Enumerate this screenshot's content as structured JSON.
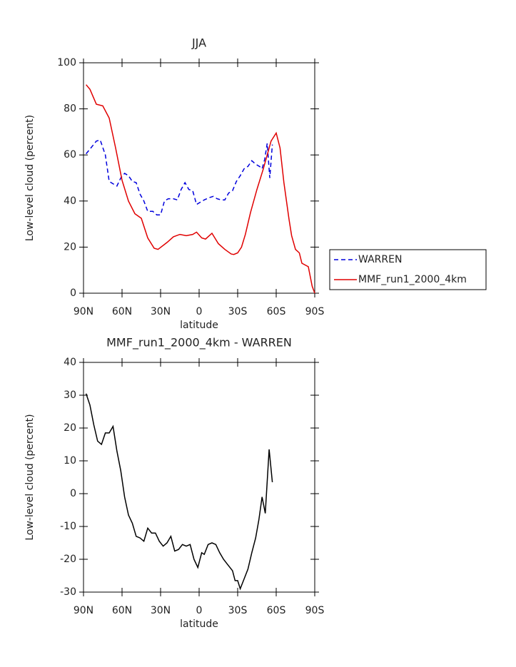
{
  "chart_data": [
    {
      "type": "line",
      "title": "JJA",
      "xlabel": "latitude",
      "ylabel": "Low-level cloud (percent)",
      "xlim": [
        90,
        -90
      ],
      "xticks": [
        {
          "value": 90,
          "label": "90N"
        },
        {
          "value": 60,
          "label": "60N"
        },
        {
          "value": 30,
          "label": "30N"
        },
        0,
        {
          "value": -30,
          "label": "30S"
        },
        {
          "value": -60,
          "label": "60S"
        },
        {
          "value": -90,
          "label": "90S"
        }
      ],
      "ylim": [
        0,
        100
      ],
      "yticks": [
        0,
        20,
        40,
        60,
        80,
        100
      ],
      "legend": "right",
      "series": [
        {
          "name": "WARREN",
          "color": "#0000dd",
          "dashed": true,
          "x": [
            88,
            85,
            80,
            77,
            73,
            70,
            67,
            64,
            61,
            58,
            55,
            52,
            49,
            46,
            43,
            40,
            36,
            33,
            30,
            27,
            24,
            20,
            17,
            14,
            11,
            8,
            5,
            2,
            -1,
            -4,
            -8,
            -11,
            -14,
            -17,
            -20,
            -23,
            -26,
            -29,
            -32,
            -35,
            -38,
            -41,
            -44,
            -47,
            -49,
            -51,
            -53,
            -55,
            -57
          ],
          "values": [
            60.5,
            62.5,
            66,
            66.5,
            60,
            48.5,
            47.5,
            46.5,
            50,
            52,
            51,
            48.5,
            48,
            43,
            40,
            35.5,
            35.5,
            34,
            34,
            40,
            41,
            41,
            40.5,
            45,
            48,
            45,
            44.5,
            38.5,
            39.5,
            40.5,
            41.5,
            42,
            41,
            40.5,
            40.5,
            43.5,
            44.5,
            48.5,
            51,
            54,
            55,
            57.5,
            56,
            55,
            54,
            58,
            65,
            50,
            64.5
          ]
        },
        {
          "name": "MMF_run1_2000_4km",
          "color": "#e00000",
          "dashed": false,
          "x": [
            88,
            85,
            80,
            75,
            70,
            65,
            60,
            55,
            50,
            45,
            40,
            35,
            32,
            25,
            20,
            15,
            10,
            5,
            2,
            -2,
            -5,
            -10,
            -15,
            -20,
            -25,
            -27,
            -30,
            -33,
            -36,
            -40,
            -45,
            -50,
            -53,
            -56,
            -60,
            -63,
            -66,
            -70,
            -72,
            -75,
            -78,
            -80,
            -85,
            -88,
            -90
          ],
          "values": [
            90.5,
            88.5,
            82,
            81.3,
            76,
            63,
            49,
            40,
            34.5,
            32.5,
            24,
            19.5,
            19,
            22,
            24.5,
            25.5,
            25,
            25.5,
            26.5,
            24,
            23.5,
            26,
            21.5,
            19,
            17,
            16.8,
            17.5,
            20,
            25.5,
            35,
            45,
            54,
            60,
            66,
            69.5,
            63,
            48,
            32,
            25,
            19,
            17.5,
            13,
            11.5,
            3,
            0
          ]
        }
      ]
    },
    {
      "type": "line",
      "title": "MMF_run1_2000_4km - WARREN",
      "xlabel": "latitude",
      "ylabel": "Low-level cloud (percent)",
      "xlim": [
        90,
        -90
      ],
      "xticks": [
        {
          "value": 90,
          "label": "90N"
        },
        {
          "value": 60,
          "label": "60N"
        },
        {
          "value": 30,
          "label": "30N"
        },
        0,
        {
          "value": -30,
          "label": "30S"
        },
        {
          "value": -60,
          "label": "60S"
        },
        {
          "value": -90,
          "label": "90S"
        }
      ],
      "ylim": [
        -30,
        40
      ],
      "yticks": [
        -30,
        -20,
        -10,
        0,
        10,
        20,
        30,
        40
      ],
      "series": [
        {
          "color": "#000000",
          "dashed": false,
          "x": [
            88,
            85,
            82,
            79,
            76,
            73,
            70,
            67,
            64,
            61,
            58,
            55,
            52,
            49,
            46,
            43,
            40,
            37,
            34,
            31,
            28,
            25,
            22,
            19,
            16,
            13,
            10,
            7,
            4,
            1,
            -2,
            -4,
            -7,
            -10,
            -13,
            -16,
            -19,
            -22,
            -26,
            -28,
            -30,
            -32,
            -35,
            -38,
            -41,
            -44,
            -46.5,
            -49,
            -51.5,
            -54.5,
            -57
          ],
          "values": [
            30.5,
            27,
            21,
            16,
            15,
            18.5,
            18.5,
            20.5,
            13,
            7,
            -1,
            -6.5,
            -9,
            -13,
            -13.5,
            -14.5,
            -10.5,
            -12,
            -12,
            -14.5,
            -16,
            -15,
            -13,
            -17.5,
            -17,
            -15.5,
            -16,
            -15.5,
            -20,
            -22.5,
            -18,
            -18.5,
            -15.5,
            -15,
            -15.5,
            -18,
            -20,
            -21.5,
            -23.5,
            -26.5,
            -26.5,
            -29,
            -26,
            -23,
            -18,
            -13.5,
            -8,
            -1,
            -6,
            13.5,
            3.5
          ]
        }
      ]
    }
  ]
}
